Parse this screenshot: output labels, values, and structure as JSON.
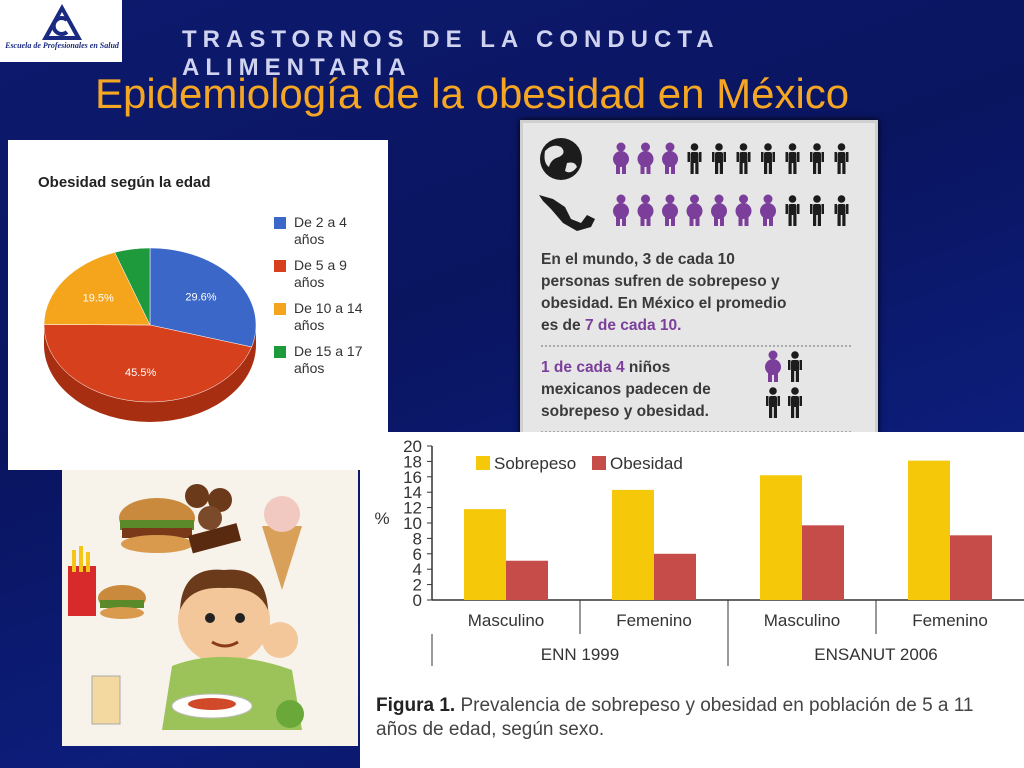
{
  "header": {
    "logo_text": "Escuela de Profesionales en Salud",
    "kicker": "TRASTORNOS DE LA CONDUCTA ALIMENTARIA",
    "title": "Epidemiología de la obesidad en México"
  },
  "colors": {
    "title": "#f5a623",
    "blue": "#3a67c8",
    "red": "#d7401c",
    "orange": "#f5a51b",
    "green": "#1e9a3c",
    "bar_yellow": "#f6c80a",
    "bar_red": "#c64c4a",
    "purple": "#7b3f9b"
  },
  "infographic": {
    "icons": [
      "globe-icon",
      "mexico-map-icon",
      "person-icon"
    ],
    "line1": "En el mundo, 3 de cada 10",
    "line2": "personas sufren de sobrepeso y",
    "line3": "obesidad. En México el promedio",
    "line4a": "es de ",
    "line4b": "7 de cada 10.",
    "kids1a": "1 de cada 4",
    "kids1b": " niños",
    "kids2": "mexicanos padecen de",
    "kids3": "sobrepeso y obesidad.",
    "world_overweight": 3,
    "world_total": 10,
    "mexico_overweight": 7,
    "mexico_total": 10
  },
  "chart_data": [
    {
      "type": "pie",
      "title": "Obesidad según la edad",
      "categories": [
        "De 2 a 4 años",
        "De 5 a 9 años",
        "De 10 a 14 años",
        "De 15 a 17 años"
      ],
      "legend_lines": [
        [
          "De 2 a 4",
          "años"
        ],
        [
          "De 5 a 9",
          "años"
        ],
        [
          "De 10 a 14",
          "años"
        ],
        [
          "De 15 a 17",
          "años"
        ]
      ],
      "values": [
        29.6,
        45.5,
        19.5,
        5.4
      ],
      "data_labels": [
        "29.6%",
        "45.5%",
        "19.5%",
        ""
      ],
      "legend": "right"
    },
    {
      "type": "bar",
      "categories": [
        "Masculino",
        "Femenino",
        "Masculino",
        "Femenino"
      ],
      "groups": [
        "ENN 1999",
        "ENSANUT 2006"
      ],
      "series": [
        {
          "name": "Sobrepeso",
          "values": [
            11.8,
            14.3,
            16.2,
            18.1
          ]
        },
        {
          "name": "Obesidad",
          "values": [
            5.1,
            6.0,
            9.7,
            8.4
          ]
        }
      ],
      "ylabel": "%",
      "ylim": [
        0,
        20
      ],
      "yticks": [
        "0",
        "2",
        "4",
        "6",
        "8",
        "10",
        "12",
        "14",
        "16",
        "18",
        "20"
      ],
      "caption_bold": "Figura 1.",
      "caption": " Prevalencia de sobrepeso y obesidad en población de 5 a 11 años de edad, según sexo.",
      "legend": "top-left"
    }
  ]
}
